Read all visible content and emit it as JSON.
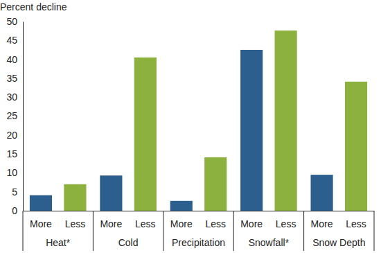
{
  "chart_data": {
    "type": "bar",
    "y_label": "Percent decline",
    "categories": [
      "Heat*",
      "Cold",
      "Precipitation",
      "Snowfall*",
      "Snow Depth"
    ],
    "series": [
      {
        "name": "More",
        "color": "#2d5f8e",
        "values": [
          4.1,
          9.3,
          2.6,
          42.5,
          9.5
        ]
      },
      {
        "name": "Less",
        "color": "#8cb13f",
        "values": [
          7.0,
          40.5,
          14.1,
          47.6,
          34.1
        ]
      }
    ],
    "ylim": [
      0,
      50
    ],
    "yticks": [
      0,
      5,
      10,
      15,
      20,
      25,
      30,
      35,
      40,
      45,
      50
    ],
    "grid": false
  }
}
